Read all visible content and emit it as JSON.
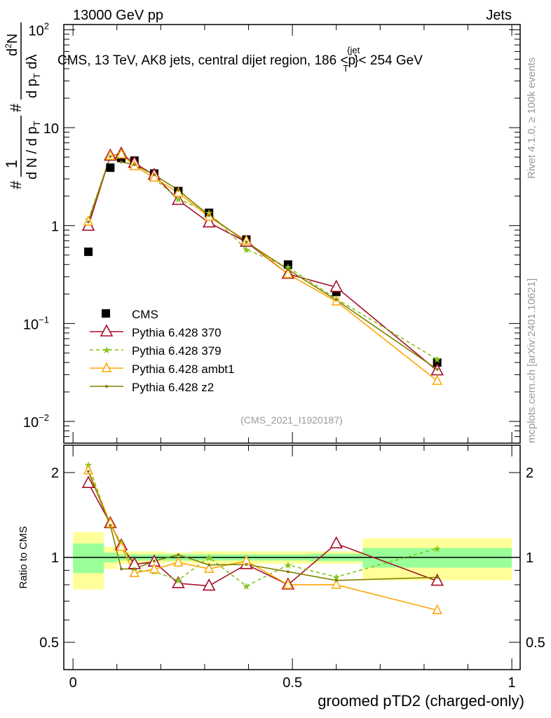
{
  "header": {
    "left": "13000 GeV pp",
    "right": "Jets"
  },
  "side_labels": {
    "rivet": "Rivet 4.1.0, ≥ 100k events",
    "mcplots": "mcplots.cern.ch [arXiv:2401.10621]"
  },
  "chart_data": {
    "type": "line",
    "title": "CMS, 13 TeV, AK8 jets, central dijet region, 186 <p",
    "title_sup": "{jet",
    "title_sub": "T",
    "title_end": "}< 254 GeV",
    "watermark": "(CMS_2021_I1920187)",
    "xlabel": "groomed pTD2 (charged-only)",
    "ylabel": {
      "n1": "1",
      "d1": "d N / d p",
      "d1sub": "T",
      "n2": "d",
      "n2sup": "2",
      "n2end": "N",
      "d2": "d p",
      "d2sub": "T",
      "d2end": " dλ",
      "hash1": "#",
      "hash2": "#"
    },
    "ratio_ylabel": "Ratio to CMS",
    "xlim": [
      -0.021,
      1.019
    ],
    "ylim": [
      0.006,
      113
    ],
    "yscale": "log",
    "ratio_ylim": [
      0.4,
      2.5
    ],
    "ratio_yscale": "log",
    "x_ticks": [
      {
        "v": 0,
        "label": "0"
      },
      {
        "v": 0.5,
        "label": "0.5"
      },
      {
        "v": 1,
        "label": "1"
      }
    ],
    "y_ticks": [
      {
        "v": 100,
        "base": "10",
        "exp": "2"
      },
      {
        "v": 10,
        "base": "10",
        "exp": ""
      },
      {
        "v": 1,
        "base": "1",
        "exp": ""
      },
      {
        "v": 0.1,
        "base": "10",
        "exp": "−1"
      },
      {
        "v": 0.01,
        "base": "10",
        "exp": "−2"
      }
    ],
    "ratio_ticks": [
      {
        "v": 2,
        "label": "2"
      },
      {
        "v": 1,
        "label": "1"
      },
      {
        "v": 0.5,
        "label": "0.5"
      }
    ],
    "bin_edges": [
      0,
      0.07,
      0.1,
      0.12,
      0.16,
      0.21,
      0.27,
      0.35,
      0.44,
      0.54,
      0.66,
      1.0
    ],
    "x": [
      0.035,
      0.085,
      0.11,
      0.14,
      0.185,
      0.24,
      0.31,
      0.395,
      0.49,
      0.6,
      0.83
    ],
    "reference": {
      "name": "CMS",
      "color": "#000000",
      "values": [
        0.54,
        3.9,
        4.9,
        4.6,
        3.4,
        2.25,
        1.35,
        0.72,
        0.4,
        0.21,
        0.04
      ],
      "stat_rel": [
        0.12,
        0.04,
        0.025,
        0.025,
        0.025,
        0.025,
        0.025,
        0.025,
        0.025,
        0.03,
        0.08
      ],
      "total_rel": [
        0.23,
        0.09,
        0.05,
        0.05,
        0.05,
        0.04,
        0.05,
        0.05,
        0.05,
        0.05,
        0.17
      ]
    },
    "band_colors": {
      "stat": "#99ff99",
      "total": "#ffff99"
    },
    "series": [
      {
        "name": "Pythia 6.428 370",
        "color": "#a50f2a",
        "marker": "triangle-big",
        "dash": "",
        "values": [
          0.99,
          5.15,
          5.4,
          4.35,
          3.28,
          1.82,
          1.07,
          0.68,
          0.32,
          0.235,
          0.033
        ]
      },
      {
        "name": "Pythia 6.428 379",
        "color": "#84c21b",
        "marker": "star",
        "dash": "5,4",
        "values": [
          1.15,
          5.07,
          5.54,
          4.14,
          3.03,
          1.87,
          1.35,
          0.57,
          0.376,
          0.179,
          0.043
        ]
      },
      {
        "name": "Pythia 6.428 ambt1",
        "color": "#ffa500",
        "marker": "triangle",
        "dash": "",
        "values": [
          1.1,
          5.15,
          5.34,
          4.05,
          3.09,
          2.16,
          1.23,
          0.7,
          0.32,
          0.168,
          0.026
        ]
      },
      {
        "name": "Pythia 6.428 z2",
        "color": "#808000",
        "marker": "dot",
        "dash": "",
        "values": [
          1.09,
          5.07,
          4.46,
          4.19,
          3.3,
          2.3,
          1.27,
          0.68,
          0.356,
          0.174,
          0.034
        ]
      }
    ]
  }
}
